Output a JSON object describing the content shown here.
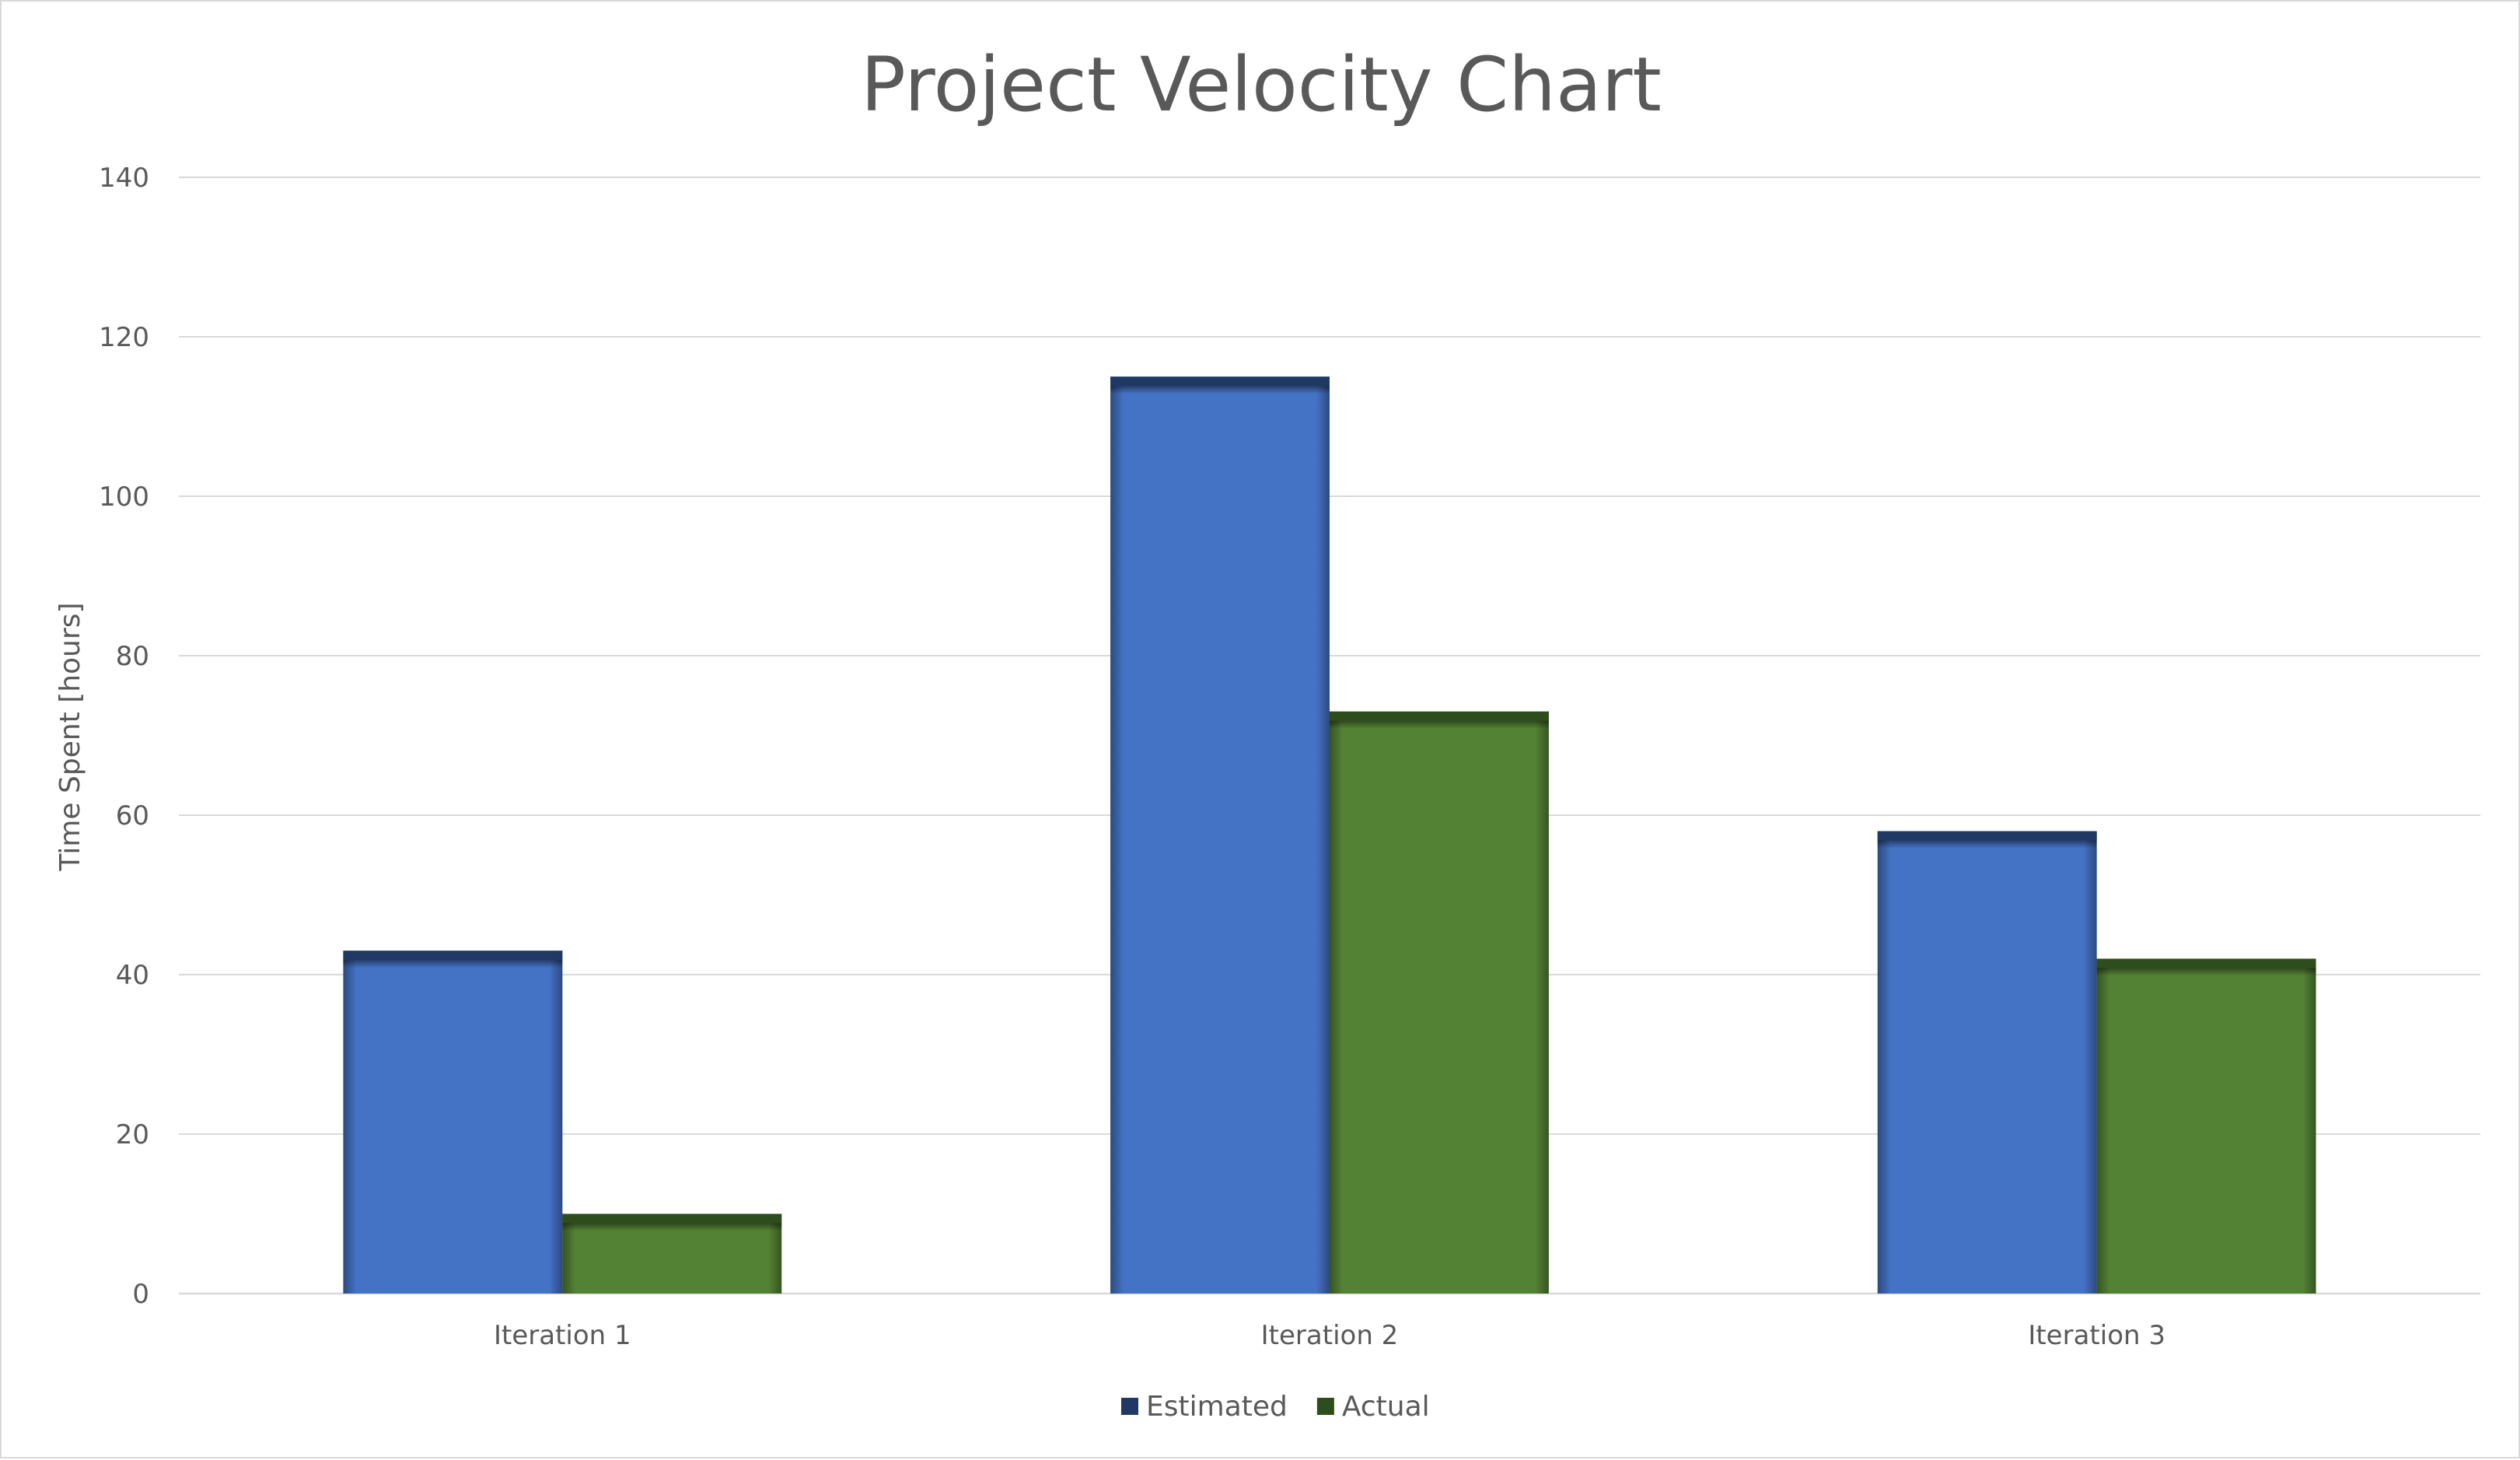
{
  "chart_data": {
    "type": "bar",
    "title": "Project Velocity Chart",
    "xlabel": "",
    "ylabel": "Time Spent [hours]",
    "categories": [
      "Iteration 1",
      "Iteration 2",
      "Iteration 3"
    ],
    "series": [
      {
        "name": "Estimated",
        "color": "#4472c4",
        "shadow_color": "#1f3864",
        "values": [
          43,
          115,
          58
        ]
      },
      {
        "name": "Actual",
        "color": "#548235",
        "shadow_color": "#2e4d1c",
        "values": [
          10,
          73,
          42
        ]
      }
    ],
    "ylim": [
      0,
      140
    ],
    "yticks": [
      0,
      20,
      40,
      60,
      80,
      100,
      120,
      140
    ],
    "ytick_labels": [
      "0",
      "20",
      "40",
      "60",
      "80",
      "100",
      "120",
      "140"
    ],
    "grid": true,
    "legend_position": "bottom"
  }
}
